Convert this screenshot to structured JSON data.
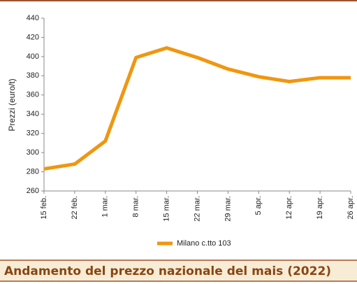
{
  "chart_data": {
    "type": "line",
    "title": "Andamento del prezzo nazionale del mais (2022)",
    "y_label": "Prezzi (euro/t)",
    "categories": [
      "15 feb.",
      "22 feb.",
      "1 mar.",
      "8 mar.",
      "15 mar.",
      "22 mar.",
      "29 mar.",
      "5 apr.",
      "12 apr.",
      "19 apr.",
      "26 apr."
    ],
    "series": [
      {
        "name": "Milano  c.tto 103",
        "color": "#f0960f",
        "values": [
          283,
          288,
          312,
          399,
          409,
          399,
          387,
          379,
          374,
          378,
          378
        ]
      }
    ],
    "ylim": [
      260,
      440
    ],
    "yticks": [
      260,
      280,
      300,
      320,
      340,
      360,
      380,
      400,
      420,
      440
    ]
  }
}
